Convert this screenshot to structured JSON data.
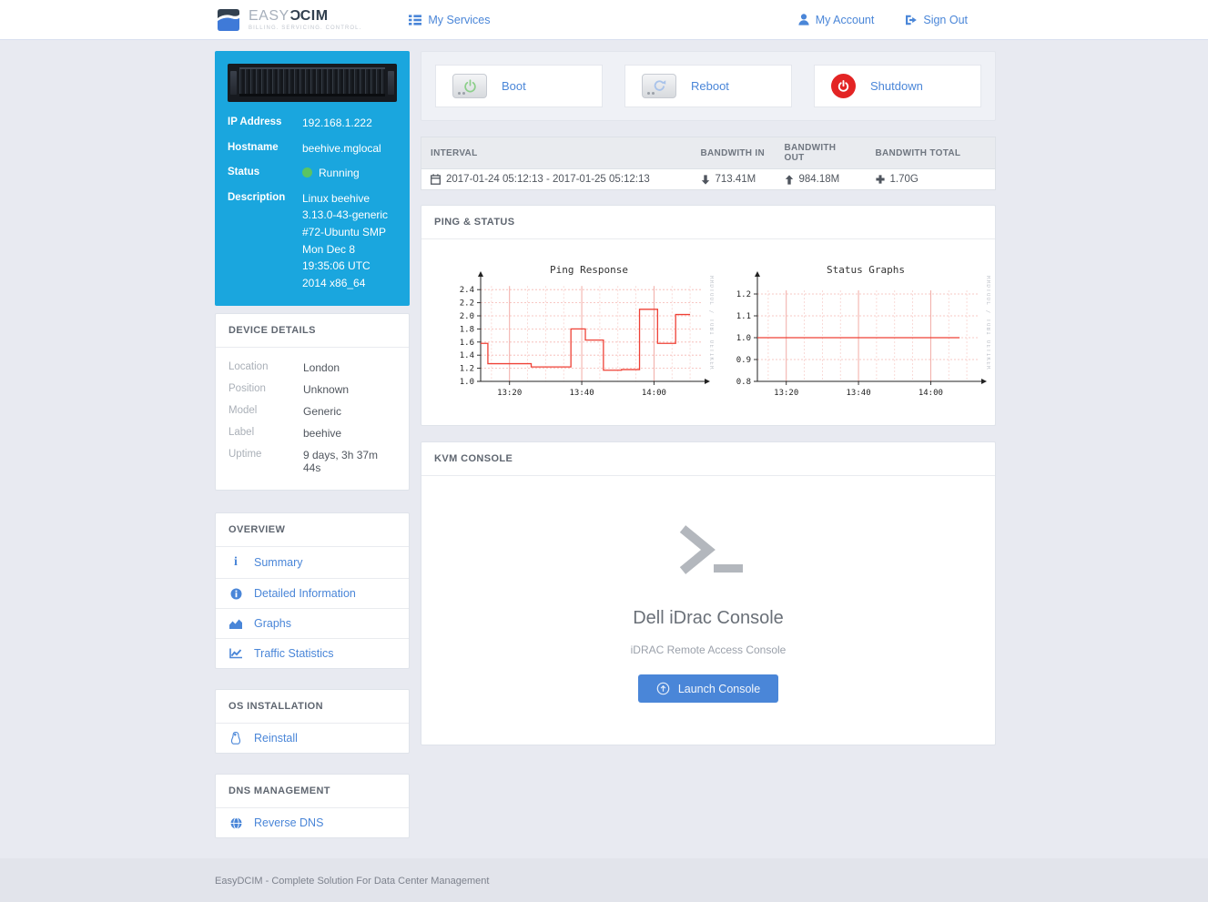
{
  "header": {
    "brand": {
      "easy": "EASY",
      "dcim_flipped_c": "C",
      "dcim_rest": "CIM",
      "tagline": "BILLING. SERVICING. CONTROL."
    },
    "nav": {
      "my_services": "My Services"
    },
    "right_nav": {
      "my_account": "My Account",
      "sign_out": "Sign Out"
    }
  },
  "sidebar": {
    "server_info": {
      "ip": {
        "label": "IP Address",
        "value": "192.168.1.222"
      },
      "hostname": {
        "label": "Hostname",
        "value": "beehive.mglocal"
      },
      "status": {
        "label": "Status",
        "value": "Running",
        "status_color": "#5bc462"
      },
      "description": {
        "label": "Description",
        "value": "Linux beehive 3.13.0-43-generic #72-Ubuntu SMP Mon Dec 8 19:35:06 UTC 2014 x86_64"
      }
    },
    "device_details": {
      "title": "DEVICE DETAILS",
      "rows": [
        {
          "label": "Location",
          "value": "London"
        },
        {
          "label": "Position",
          "value": "Unknown"
        },
        {
          "label": "Model",
          "value": "Generic"
        },
        {
          "label": "Label",
          "value": "beehive"
        },
        {
          "label": "Uptime",
          "value": "9 days, 3h 37m 44s"
        }
      ]
    },
    "menus": [
      {
        "title": "OVERVIEW",
        "items": [
          {
            "label": "Summary",
            "icon": "info-icon"
          },
          {
            "label": "Detailed Information",
            "icon": "info-circle-icon"
          },
          {
            "label": "Graphs",
            "icon": "area-chart-icon"
          },
          {
            "label": "Traffic Statistics",
            "icon": "line-chart-icon"
          }
        ]
      },
      {
        "title": "OS INSTALLATION",
        "items": [
          {
            "label": "Reinstall",
            "icon": "linux-penguin-icon"
          }
        ]
      },
      {
        "title": "DNS MANAGEMENT",
        "items": [
          {
            "label": "Reverse DNS",
            "icon": "globe-icon"
          }
        ]
      }
    ]
  },
  "main": {
    "actions": [
      {
        "label": "Boot",
        "icon": "server-power-icon",
        "accent": "#8ccf8a"
      },
      {
        "label": "Reboot",
        "icon": "server-refresh-icon",
        "accent": "#a9c3ea"
      },
      {
        "label": "Shutdown",
        "icon": "power-circle-icon",
        "accent": "#e32424"
      }
    ],
    "bandwidth_table": {
      "columns": [
        "INTERVAL",
        "BANDWITH IN",
        "BANDWITH OUT",
        "BANDWITH TOTAL"
      ],
      "row": {
        "interval": "2017-01-24 05:12:13 - 2017-01-25 05:12:13",
        "in": "713.41M",
        "out": "984.18M",
        "total": "1.70G"
      }
    },
    "ping_status": {
      "title": "PING & STATUS"
    },
    "kvm": {
      "title": "KVM CONSOLE",
      "heading": "Dell iDrac Console",
      "subheading": "iDRAC Remote Access Console",
      "button": "Launch Console"
    }
  },
  "footer": {
    "text": "EasyDCIM - Complete Solution For Data Center Management"
  },
  "chart_data": [
    {
      "type": "line",
      "subtype": "step",
      "title": "Ping Response",
      "watermark": "RRDTOOL / TOBI OETIKER",
      "line_color": "#ef4136",
      "grid": true,
      "legend_position": "none",
      "xlim": [
        0,
        60
      ],
      "ylim": [
        1.0,
        2.5
      ],
      "y_ticks": [
        1.0,
        1.2,
        1.4,
        1.6,
        1.8,
        2.0,
        2.2,
        2.4
      ],
      "x_ticks": [
        {
          "pos": 8,
          "label": "13:20"
        },
        {
          "pos": 28,
          "label": "13:40"
        },
        {
          "pos": 48,
          "label": "14:00"
        }
      ],
      "minor_x_step": 5,
      "minor_x_offset": 3,
      "segments": [
        [
          0,
          2,
          1.58
        ],
        [
          2,
          14,
          1.27
        ],
        [
          14,
          25,
          1.22
        ],
        [
          25,
          29,
          1.8
        ],
        [
          29,
          34,
          1.63
        ],
        [
          34,
          39,
          1.17
        ],
        [
          39,
          44,
          1.18
        ],
        [
          44,
          49,
          2.1
        ],
        [
          49,
          54,
          1.58
        ],
        [
          54,
          58,
          2.02
        ]
      ]
    },
    {
      "type": "line",
      "subtype": "step",
      "title": "Status Graphs",
      "watermark": "RRDTOOL / TOBI OETIKER",
      "line_color": "#ef4136",
      "grid": true,
      "legend_position": "none",
      "xlim": [
        0,
        60
      ],
      "ylim": [
        0.8,
        1.25
      ],
      "y_ticks": [
        0.8,
        0.9,
        1.0,
        1.1,
        1.2
      ],
      "x_ticks": [
        {
          "pos": 8,
          "label": "13:20"
        },
        {
          "pos": 28,
          "label": "13:40"
        },
        {
          "pos": 48,
          "label": "14:00"
        }
      ],
      "minor_x_step": 5,
      "minor_x_offset": 3,
      "segments": [
        [
          0,
          56,
          1.0
        ]
      ]
    }
  ]
}
